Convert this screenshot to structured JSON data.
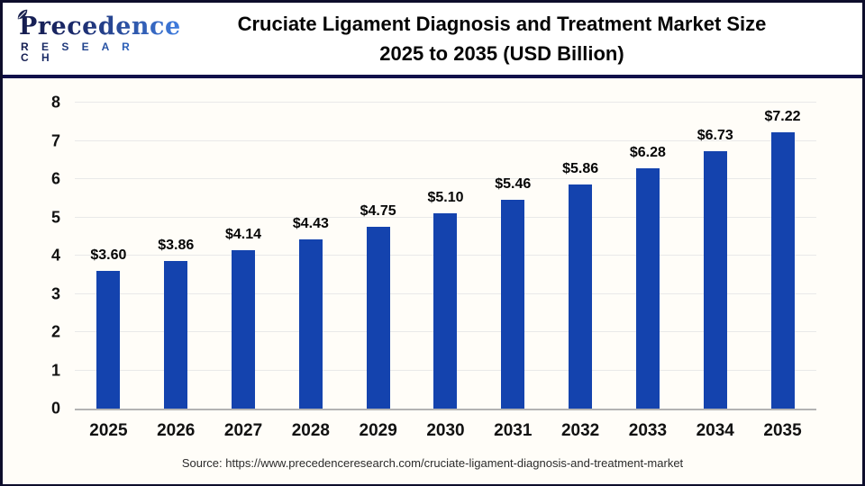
{
  "header": {
    "logo_name": "Precedence",
    "logo_subtitle": "R E S E A R C H",
    "title_line1": "Cruciate Ligament Diagnosis and Treatment Market Size",
    "title_line2": "2025 to 2035 (USD Billion)"
  },
  "chart_data": {
    "type": "bar",
    "title": "Cruciate Ligament Diagnosis and Treatment Market Size 2025 to 2035 (USD Billion)",
    "categories": [
      "2025",
      "2026",
      "2027",
      "2028",
      "2029",
      "2030",
      "2031",
      "2032",
      "2033",
      "2034",
      "2035"
    ],
    "values": [
      3.6,
      3.86,
      4.14,
      4.43,
      4.75,
      5.1,
      5.46,
      5.86,
      6.28,
      6.73,
      7.22
    ],
    "value_labels": [
      "$3.60",
      "$3.86",
      "$4.14",
      "$4.43",
      "$4.75",
      "$5.10",
      "$5.46",
      "$5.86",
      "$6.28",
      "$6.73",
      "$7.22"
    ],
    "xlabel": "",
    "ylabel": "",
    "ylim": [
      0,
      8
    ],
    "yticks": [
      0,
      1,
      2,
      3,
      4,
      5,
      6,
      7,
      8
    ],
    "grid": true,
    "legend": false,
    "bar_color": "#1443AE",
    "gridline_color": "#e9e9e9",
    "baseline_color": "#b3b3b3"
  },
  "footer": {
    "source": "Source: https://www.precedenceresearch.com/cruciate-ligament-diagnosis-and-treatment-market"
  }
}
